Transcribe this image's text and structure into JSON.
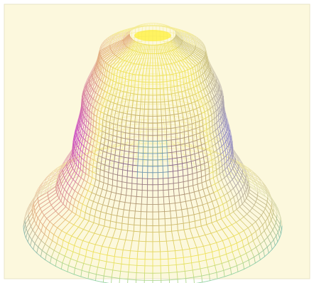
{
  "figure": {
    "subject": "",
    "colors": {
      "page": "#ffffff",
      "panel": "#fcf8dd",
      "panel_edge": "#e8e3c6",
      "mesh_yellow": "#efe35e",
      "mesh_magenta": "#cc4fc4",
      "mesh_cyan": "#57c6d2",
      "mesh_dark": "#2d4f70",
      "top_cap": "#fff24a"
    },
    "mesh": {
      "rings": 34,
      "segments": 96,
      "shape_profile": [
        {
          "t": 0.0,
          "radius": 0.18
        },
        {
          "t": 0.1,
          "radius": 0.42
        },
        {
          "t": 0.35,
          "radius": 0.55
        },
        {
          "t": 0.6,
          "radius": 0.62
        },
        {
          "t": 0.78,
          "radius": 0.74
        },
        {
          "t": 0.88,
          "radius": 0.92
        },
        {
          "t": 1.0,
          "radius": 1.0
        }
      ],
      "tilt_deg": 28
    }
  }
}
